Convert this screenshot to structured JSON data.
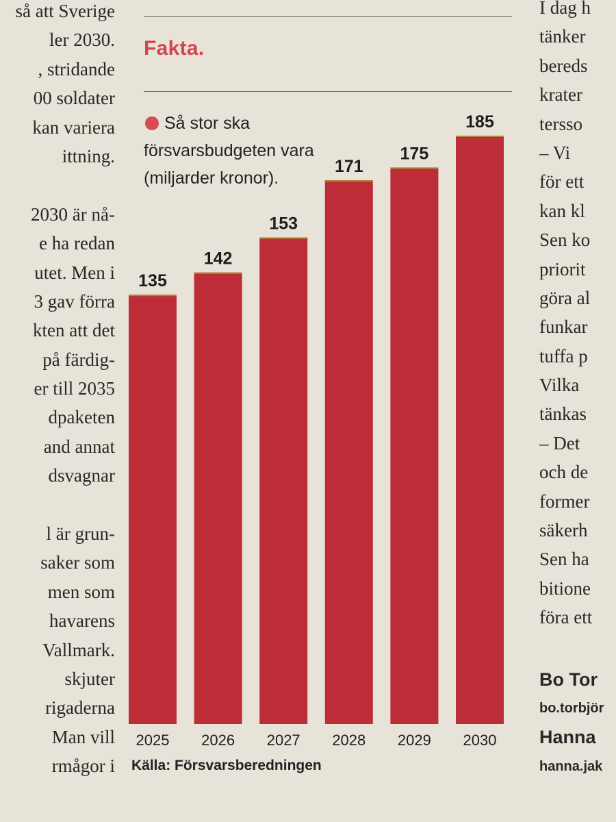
{
  "left_column": {
    "lines": [
      "så att Sverige",
      "ler 2030.",
      ", stridande",
      "00 soldater",
      "kan variera",
      "ittning.",
      "",
      "2030 är nå-",
      "e ha redan",
      "utet. Men i",
      "3 gav förra",
      "kten att det",
      "på färdig-",
      "er till 2035",
      "dpaketen",
      "and annat",
      "dsvagnar",
      "",
      "l är grun-",
      "saker som",
      "men som",
      "havarens",
      "Vallmark.",
      "skjuter",
      "rigaderna",
      "Man vill",
      "rmågor i"
    ]
  },
  "right_column": {
    "lines": [
      "I dag h",
      "tänker",
      "bereds",
      "krater",
      "tersso",
      "– Vi",
      "för ett",
      "kan kl",
      "Sen ko",
      "priorit",
      "göra al",
      "funkar",
      "tuffa p",
      "Vilka",
      "tänkas",
      "– Det",
      "och de",
      "former",
      "säkerh",
      "Sen ha",
      "bitione",
      "föra ett"
    ],
    "byline_1": "Bo Tor",
    "email_1": "bo.torbjör",
    "byline_2": "Hanna",
    "email_2": "hanna.jak"
  },
  "factbox": {
    "heading": "Fakta.",
    "legend": "Så stor ska försvarsbudgeten vara (miljarder kronor).",
    "source": "Källa: Försvarsberedningen"
  },
  "colors": {
    "bar": "#bd2d37",
    "heading": "#d3464f",
    "legend_dot": "#d94a52",
    "paper": "#e7e3d8"
  },
  "chart_data": {
    "type": "bar",
    "categories": [
      "2025",
      "2026",
      "2027",
      "2028",
      "2029",
      "2030"
    ],
    "values": [
      135,
      142,
      153,
      171,
      175,
      185
    ],
    "data_labels": [
      "135",
      "142",
      "153",
      "171",
      "175",
      "185"
    ],
    "title": "Så stor ska försvarsbudgeten vara (miljarder kronor).",
    "xlabel": "",
    "ylabel": "",
    "ylim": [
      0,
      185
    ],
    "grid": false,
    "legend_position": "top-left"
  }
}
